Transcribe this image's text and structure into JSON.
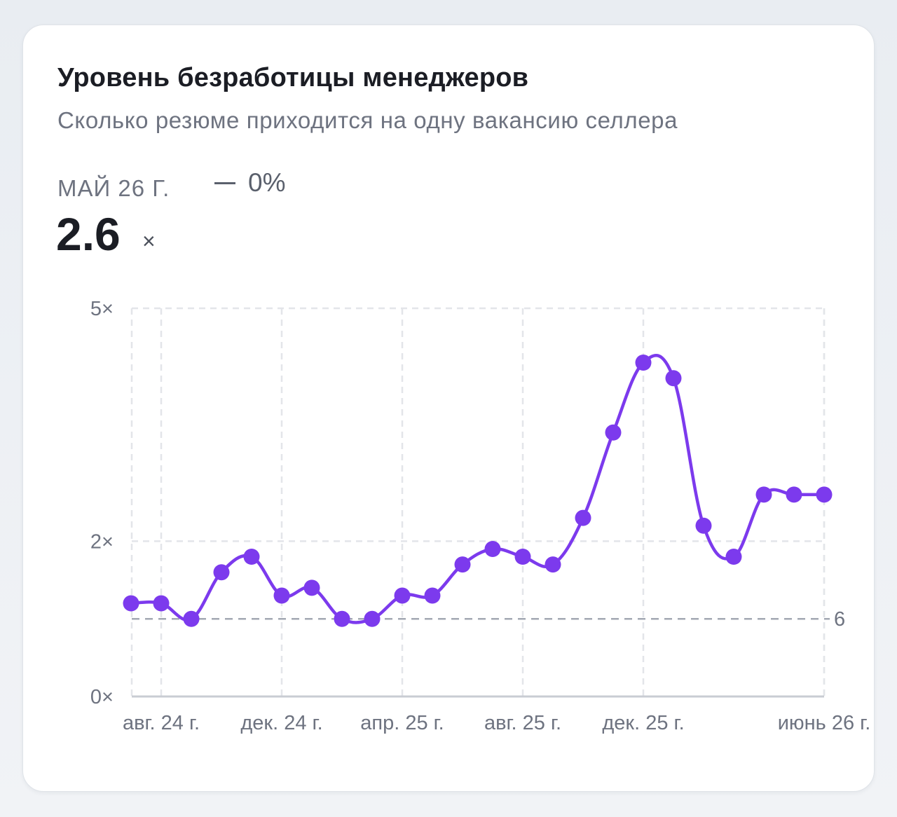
{
  "card": {
    "title": "Уровень безработицы менеджеров",
    "subtitle": "Сколько резюме приходится на одну вакансию селлера",
    "period": "МАЙ 26 Г.",
    "change": "0%",
    "value": "2.6",
    "unit": "×"
  },
  "chart_data": {
    "type": "line",
    "ylim": [
      0,
      5
    ],
    "y_ticks": [
      {
        "v": 5,
        "label": "5×"
      },
      {
        "v": 2,
        "label": "2×"
      },
      {
        "v": 0,
        "label": "0×"
      }
    ],
    "x_ticks": [
      {
        "i": 1,
        "label": "авг. 24 г."
      },
      {
        "i": 5,
        "label": "дек. 24 г."
      },
      {
        "i": 9,
        "label": "апр. 25 г."
      },
      {
        "i": 13,
        "label": "авг. 25 г."
      },
      {
        "i": 17,
        "label": "дек. 25 г."
      },
      {
        "i": 23,
        "label": "июнь 26 г."
      }
    ],
    "reference_line": {
      "value": 1.0,
      "label": "6"
    },
    "series": [
      {
        "color": "#7c3aed",
        "values": [
          1.2,
          1.2,
          1.0,
          1.6,
          1.8,
          1.3,
          1.4,
          1.0,
          1.0,
          1.3,
          1.3,
          1.7,
          1.9,
          1.8,
          1.7,
          2.3,
          3.4,
          4.3,
          4.1,
          2.2,
          1.8,
          2.6,
          2.6,
          2.6
        ]
      }
    ],
    "grid": true
  }
}
